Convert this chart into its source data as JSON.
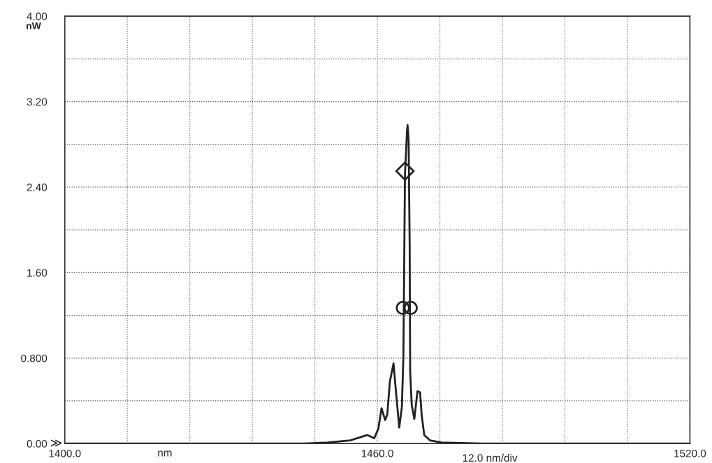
{
  "chart_data": {
    "type": "line",
    "xlabel": "nm",
    "ylabel": "nW",
    "annotations": [
      "12.0 nm/div",
      "≫"
    ],
    "xlim": [
      1400,
      1520
    ],
    "ylim": [
      0,
      4
    ],
    "xticks": [
      {
        "value": 1400,
        "label": "1400.0"
      },
      {
        "value": 1412,
        "label": null
      },
      {
        "value": 1424,
        "label": null
      },
      {
        "value": 1436,
        "label": null
      },
      {
        "value": 1448,
        "label": null
      },
      {
        "value": 1460,
        "label": "1460.0"
      },
      {
        "value": 1472,
        "label": null
      },
      {
        "value": 1484,
        "label": null
      },
      {
        "value": 1496,
        "label": null
      },
      {
        "value": 1508,
        "label": null
      },
      {
        "value": 1520,
        "label": "1520.0"
      }
    ],
    "yticks": [
      {
        "value": 0,
        "label": "0.00"
      },
      {
        "value": 0.4,
        "label": null
      },
      {
        "value": 0.8,
        "label": "0.800"
      },
      {
        "value": 1.2,
        "label": null
      },
      {
        "value": 1.6,
        "label": "1.60"
      },
      {
        "value": 2.0,
        "label": null
      },
      {
        "value": 2.4,
        "label": "2.40"
      },
      {
        "value": 2.8,
        "label": null
      },
      {
        "value": 3.2,
        "label": "3.20"
      },
      {
        "value": 3.6,
        "label": null
      },
      {
        "value": 4.0,
        "label": "4.00"
      }
    ],
    "grid": true,
    "legend": false,
    "series": [
      {
        "color": "#222222",
        "marker": "none",
        "line_style": "solid",
        "x": [
          1400,
          1430,
          1446,
          1450.5,
          1454.8,
          1458.1,
          1459.4,
          1460.2,
          1460.8,
          1461.5,
          1461.9,
          1462.4,
          1463.1,
          1463.6,
          1464.2,
          1464.7,
          1465.0,
          1465.3,
          1465.7,
          1465.8,
          1466.0,
          1466.2,
          1466.3,
          1466.6,
          1467.1,
          1467.7,
          1468.2,
          1468.5,
          1469.0,
          1470.1,
          1472.3,
          1480,
          1520
        ],
        "values": [
          0,
          0,
          0,
          0.01,
          0.03,
          0.08,
          0.05,
          0.14,
          0.33,
          0.22,
          0.27,
          0.58,
          0.75,
          0.47,
          0.15,
          0.34,
          0.82,
          2.52,
          2.93,
          2.98,
          2.84,
          1.86,
          0.67,
          0.36,
          0.23,
          0.49,
          0.48,
          0.27,
          0.08,
          0.03,
          0.01,
          0,
          0
        ]
      },
      {
        "type": "scatter",
        "color": "#222222",
        "marker": "diamond",
        "x": [
          1465.3
        ],
        "values": [
          2.55
        ]
      },
      {
        "type": "scatter",
        "color": "#222222",
        "marker": "circle",
        "x": [
          1464.9,
          1466.4
        ],
        "values": [
          1.27,
          1.27
        ]
      }
    ]
  }
}
